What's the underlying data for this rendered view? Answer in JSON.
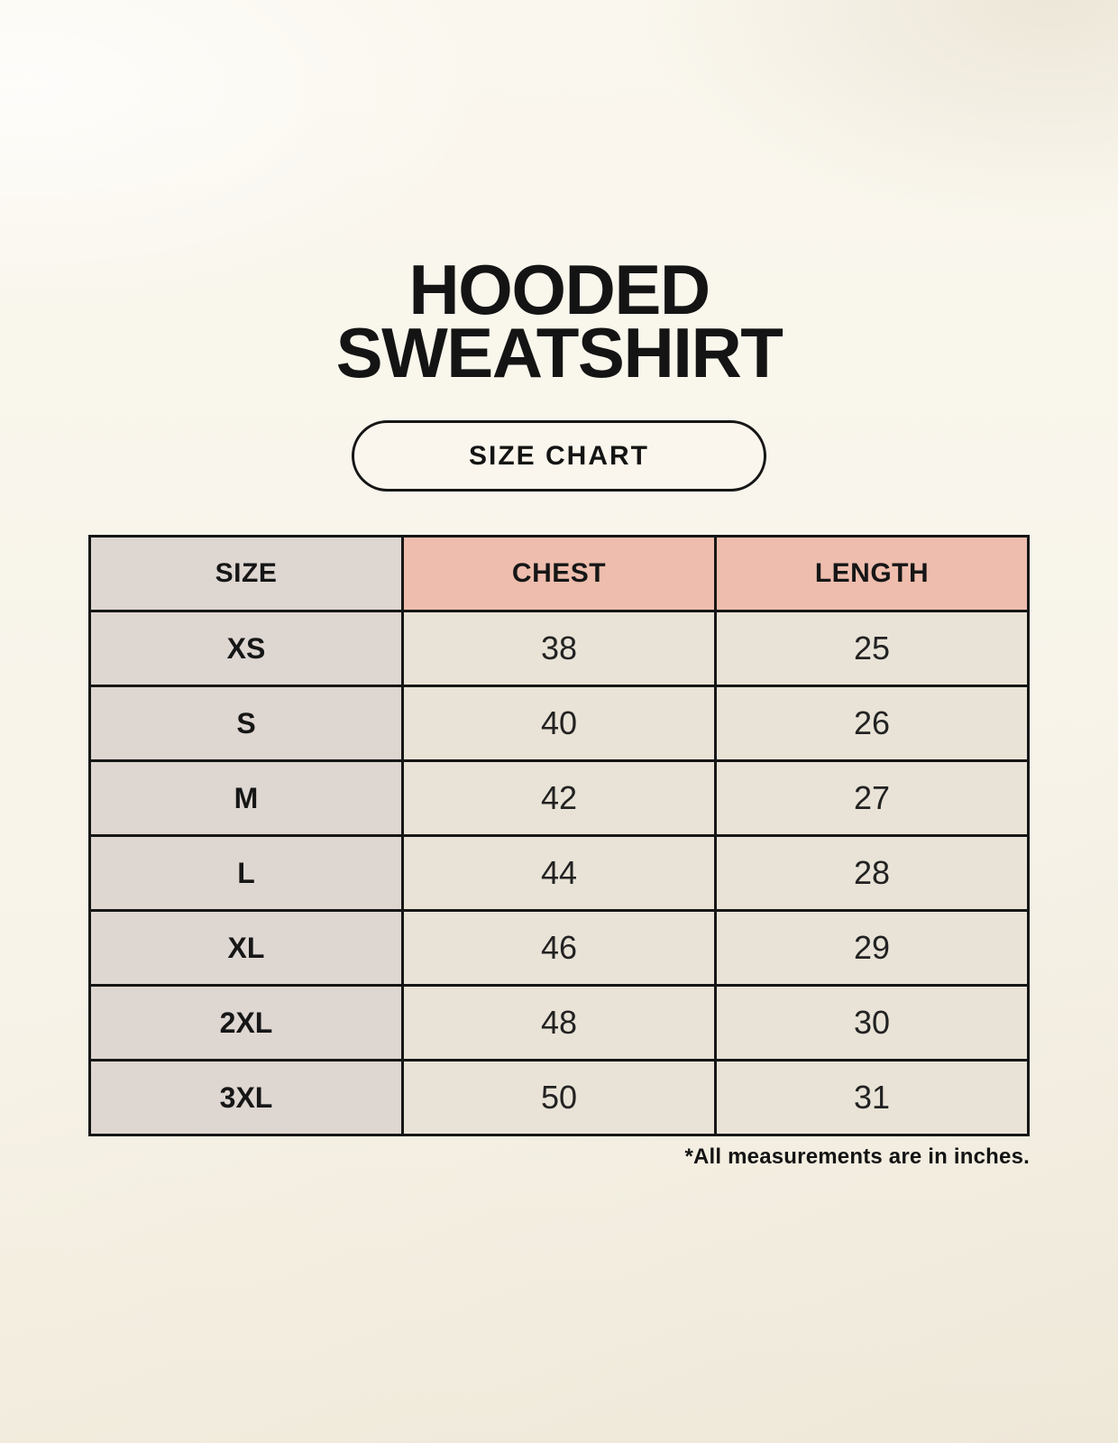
{
  "header": {
    "title_line1": "HOODED",
    "title_line2": "SWEATSHIRT",
    "button_label": "SIZE CHART"
  },
  "footnote": "*All measurements are in inches.",
  "colors": {
    "background": "#F8F4EA",
    "accent_header": "#EEBDAD",
    "size_column": "#DED6D1",
    "data_cell": "#E9E3D7",
    "border": "#161616",
    "text": "#141414"
  },
  "chart_data": {
    "type": "table",
    "title": "HOODED SWEATSHIRT",
    "subtitle": "SIZE CHART",
    "columns": [
      "SIZE",
      "CHEST",
      "LENGTH"
    ],
    "rows": [
      {
        "size": "XS",
        "chest": "38",
        "length": "25"
      },
      {
        "size": "S",
        "chest": "40",
        "length": "26"
      },
      {
        "size": "M",
        "chest": "42",
        "length": "27"
      },
      {
        "size": "L",
        "chest": "44",
        "length": "28"
      },
      {
        "size": "XL",
        "chest": "46",
        "length": "29"
      },
      {
        "size": "2XL",
        "chest": "48",
        "length": "30"
      },
      {
        "size": "3XL",
        "chest": "50",
        "length": "31"
      }
    ],
    "units": "inches",
    "layout": {
      "grid": true,
      "note_position": "bottom-right"
    }
  }
}
